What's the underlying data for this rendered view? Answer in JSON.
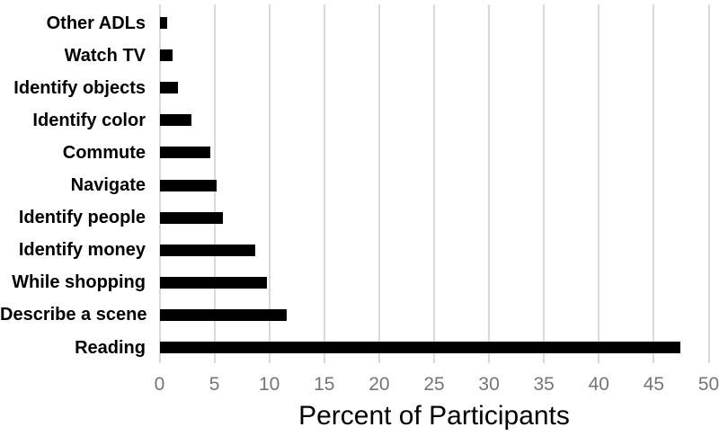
{
  "chart_data": {
    "type": "bar",
    "orientation": "horizontal",
    "title": "",
    "xlabel": "Percent of Participants",
    "ylabel": "",
    "categories": [
      "Other ADLs",
      "Watch TV",
      "Identify objects",
      "Identify color",
      "Commute",
      "Navigate",
      "Identify people",
      "Identify money",
      "While shopping",
      "Describe a scene",
      "Reading"
    ],
    "values": [
      0.7,
      1.2,
      1.7,
      2.9,
      4.6,
      5.2,
      5.8,
      8.7,
      9.8,
      11.6,
      47.4
    ],
    "xlim": [
      0,
      50
    ],
    "xticks": [
      0,
      5,
      10,
      15,
      20,
      25,
      30,
      35,
      40,
      45,
      50
    ],
    "grid": "vertical-only",
    "legend": "none",
    "colors": {
      "bar": "#000000",
      "gridline": "#d9d9d9",
      "tick_label": "#757575",
      "category_label": "#000000",
      "axis_title": "#000000",
      "background": "#ffffff"
    }
  }
}
